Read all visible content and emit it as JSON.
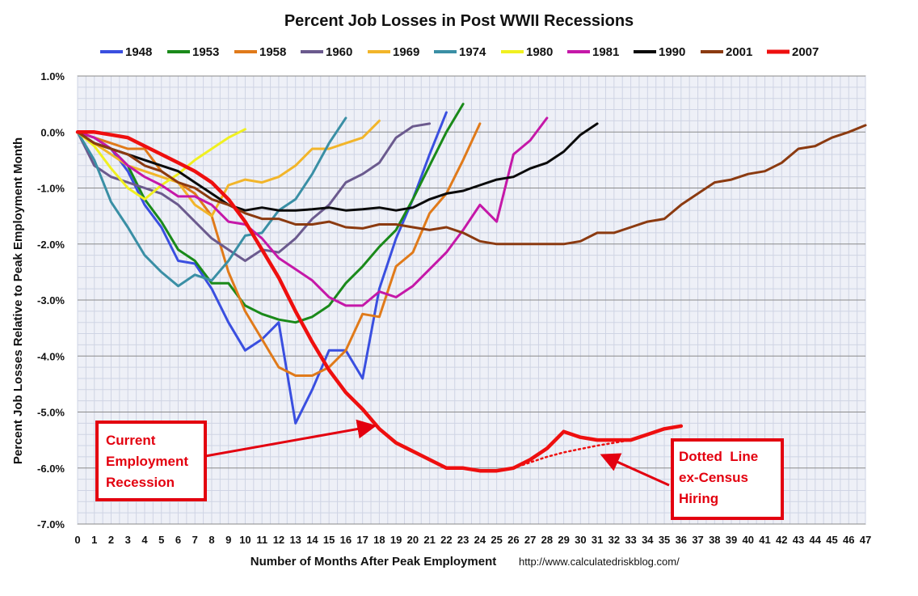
{
  "chart_data": {
    "type": "line",
    "title": "Percent Job Losses in Post WWII Recessions",
    "xlabel": "Number of Months After Peak Employment",
    "ylabel": "Percent Job Losses Relative to Peak Employment Month",
    "credit": "http://www.calculatedriskblog.com/",
    "xlim": [
      0,
      47
    ],
    "ylim": [
      -7,
      1
    ],
    "y_ticks": [
      1,
      0,
      -1,
      -2,
      -3,
      -4,
      -5,
      -6,
      -7
    ],
    "y_tick_labels": [
      "1.0%",
      "0.0%",
      "-1.0%",
      "-2.0%",
      "-3.0%",
      "-4.0%",
      "-5.0%",
      "-6.0%",
      "-7.0%"
    ],
    "x_ticks": [
      0,
      1,
      2,
      3,
      4,
      5,
      6,
      7,
      8,
      9,
      10,
      11,
      12,
      13,
      14,
      15,
      16,
      17,
      18,
      19,
      20,
      21,
      22,
      23,
      24,
      25,
      26,
      27,
      28,
      29,
      30,
      31,
      32,
      33,
      34,
      35,
      36,
      37,
      38,
      39,
      40,
      41,
      42,
      43,
      44,
      45,
      46,
      47
    ],
    "grid": true,
    "legend_position": "top",
    "series": [
      {
        "name": "1948",
        "color": "#3a4fe0",
        "width": 3,
        "values": [
          0,
          -0.1,
          -0.3,
          -0.7,
          -1.3,
          -1.7,
          -2.3,
          -2.35,
          -2.8,
          -3.4,
          -3.9,
          -3.7,
          -3.4,
          -5.2,
          -4.6,
          -3.9,
          -3.9,
          -4.4,
          -2.8,
          -1.9,
          -1.2,
          -0.4,
          0.35
        ]
      },
      {
        "name": "1953",
        "color": "#1a8a1a",
        "width": 3,
        "values": [
          0,
          -0.2,
          -0.3,
          -0.6,
          -1.2,
          -1.6,
          -2.1,
          -2.3,
          -2.7,
          -2.7,
          -3.1,
          -3.25,
          -3.35,
          -3.4,
          -3.3,
          -3.1,
          -2.7,
          -2.4,
          -2.05,
          -1.75,
          -1.2,
          -0.6,
          0,
          0.5
        ]
      },
      {
        "name": "1958",
        "color": "#e07a1a",
        "width": 3,
        "values": [
          0,
          -0.1,
          -0.2,
          -0.3,
          -0.3,
          -0.7,
          -0.9,
          -1.1,
          -1.5,
          -2.5,
          -3.2,
          -3.7,
          -4.2,
          -4.35,
          -4.35,
          -4.2,
          -3.9,
          -3.25,
          -3.3,
          -2.4,
          -2.15,
          -1.45,
          -1.1,
          -0.5,
          0.15
        ]
      },
      {
        "name": "1960",
        "color": "#6b5a8e",
        "width": 3,
        "values": [
          0,
          -0.6,
          -0.8,
          -0.9,
          -1.0,
          -1.1,
          -1.3,
          -1.6,
          -1.9,
          -2.1,
          -2.3,
          -2.1,
          -2.15,
          -1.9,
          -1.55,
          -1.3,
          -0.9,
          -0.75,
          -0.55,
          -0.1,
          0.1,
          0.15
        ]
      },
      {
        "name": "1969",
        "color": "#f2b52a",
        "width": 3,
        "values": [
          0,
          -0.2,
          -0.4,
          -0.6,
          -0.7,
          -0.8,
          -0.9,
          -1.3,
          -1.5,
          -0.95,
          -0.85,
          -0.9,
          -0.8,
          -0.6,
          -0.3,
          -0.3,
          -0.2,
          -0.1,
          0.2
        ]
      },
      {
        "name": "1974",
        "color": "#3a8fa5",
        "width": 3,
        "values": [
          0,
          -0.5,
          -1.25,
          -1.7,
          -2.2,
          -2.5,
          -2.75,
          -2.55,
          -2.65,
          -2.3,
          -1.85,
          -1.8,
          -1.4,
          -1.2,
          -0.75,
          -0.2,
          0.25
        ]
      },
      {
        "name": "1980",
        "color": "#f0f020",
        "width": 3,
        "values": [
          0,
          -0.25,
          -0.65,
          -1.0,
          -1.2,
          -0.95,
          -0.75,
          -0.5,
          -0.3,
          -0.1,
          0.05
        ]
      },
      {
        "name": "1981",
        "color": "#c518a8",
        "width": 3,
        "values": [
          0,
          -0.1,
          -0.3,
          -0.6,
          -0.8,
          -0.95,
          -1.15,
          -1.15,
          -1.3,
          -1.6,
          -1.65,
          -1.9,
          -2.25,
          -2.45,
          -2.65,
          -2.95,
          -3.1,
          -3.1,
          -2.85,
          -2.95,
          -2.75,
          -2.45,
          -2.15,
          -1.75,
          -1.3,
          -1.6,
          -0.4,
          -0.15,
          0.25
        ]
      },
      {
        "name": "1990",
        "color": "#0a0a0a",
        "width": 3,
        "values": [
          0,
          -0.2,
          -0.3,
          -0.4,
          -0.5,
          -0.6,
          -0.7,
          -0.9,
          -1.1,
          -1.3,
          -1.4,
          -1.35,
          -1.4,
          -1.4,
          -1.38,
          -1.35,
          -1.4,
          -1.38,
          -1.35,
          -1.4,
          -1.35,
          -1.2,
          -1.1,
          -1.05,
          -0.95,
          -0.85,
          -0.8,
          -0.65,
          -0.55,
          -0.35,
          -0.05,
          0.15
        ]
      },
      {
        "name": "2001",
        "color": "#8b3a10",
        "width": 3,
        "values": [
          0,
          -0.2,
          -0.3,
          -0.4,
          -0.6,
          -0.7,
          -0.9,
          -1.0,
          -1.2,
          -1.3,
          -1.45,
          -1.55,
          -1.55,
          -1.65,
          -1.65,
          -1.6,
          -1.7,
          -1.72,
          -1.65,
          -1.65,
          -1.7,
          -1.75,
          -1.7,
          -1.8,
          -1.95,
          -2.0,
          -2.0,
          -2.0,
          -2.0,
          -2.0,
          -1.95,
          -1.8,
          -1.8,
          -1.7,
          -1.6,
          -1.55,
          -1.3,
          -1.1,
          -0.9,
          -0.85,
          -0.75,
          -0.7,
          -0.55,
          -0.3,
          -0.25,
          -0.1,
          0.0,
          0.12
        ]
      },
      {
        "name": "2007",
        "color": "#ee0f0f",
        "width": 4.5,
        "values": [
          0,
          0,
          -0.05,
          -0.1,
          -0.25,
          -0.4,
          -0.55,
          -0.7,
          -0.9,
          -1.2,
          -1.6,
          -2.1,
          -2.6,
          -3.2,
          -3.75,
          -4.25,
          -4.65,
          -4.95,
          -5.3,
          -5.55,
          -5.7,
          -5.85,
          -6.0,
          -6.0,
          -6.05,
          -6.05,
          -6.0,
          -5.85,
          -5.65,
          -5.35,
          -5.45,
          -5.5,
          -5.5,
          -5.5,
          -5.4,
          -5.3,
          -5.25
        ]
      },
      {
        "name": "2007 ex-Census",
        "legend": false,
        "dotted": true,
        "color": "#ee0f0f",
        "width": 2.5,
        "x": [
          26,
          27,
          28,
          29,
          30,
          31,
          32,
          33
        ],
        "values": [
          -6.0,
          -5.9,
          -5.8,
          -5.72,
          -5.66,
          -5.6,
          -5.55,
          -5.5
        ]
      }
    ],
    "annotations": [
      {
        "lines": [
          "Current",
          "Employment",
          "Recession"
        ],
        "arrow_to": [
          17.7,
          -5.25
        ]
      },
      {
        "lines": [
          "Dotted  Line",
          "ex-Census",
          "Hiring"
        ],
        "arrow_to": [
          31.3,
          -5.77
        ]
      }
    ]
  }
}
